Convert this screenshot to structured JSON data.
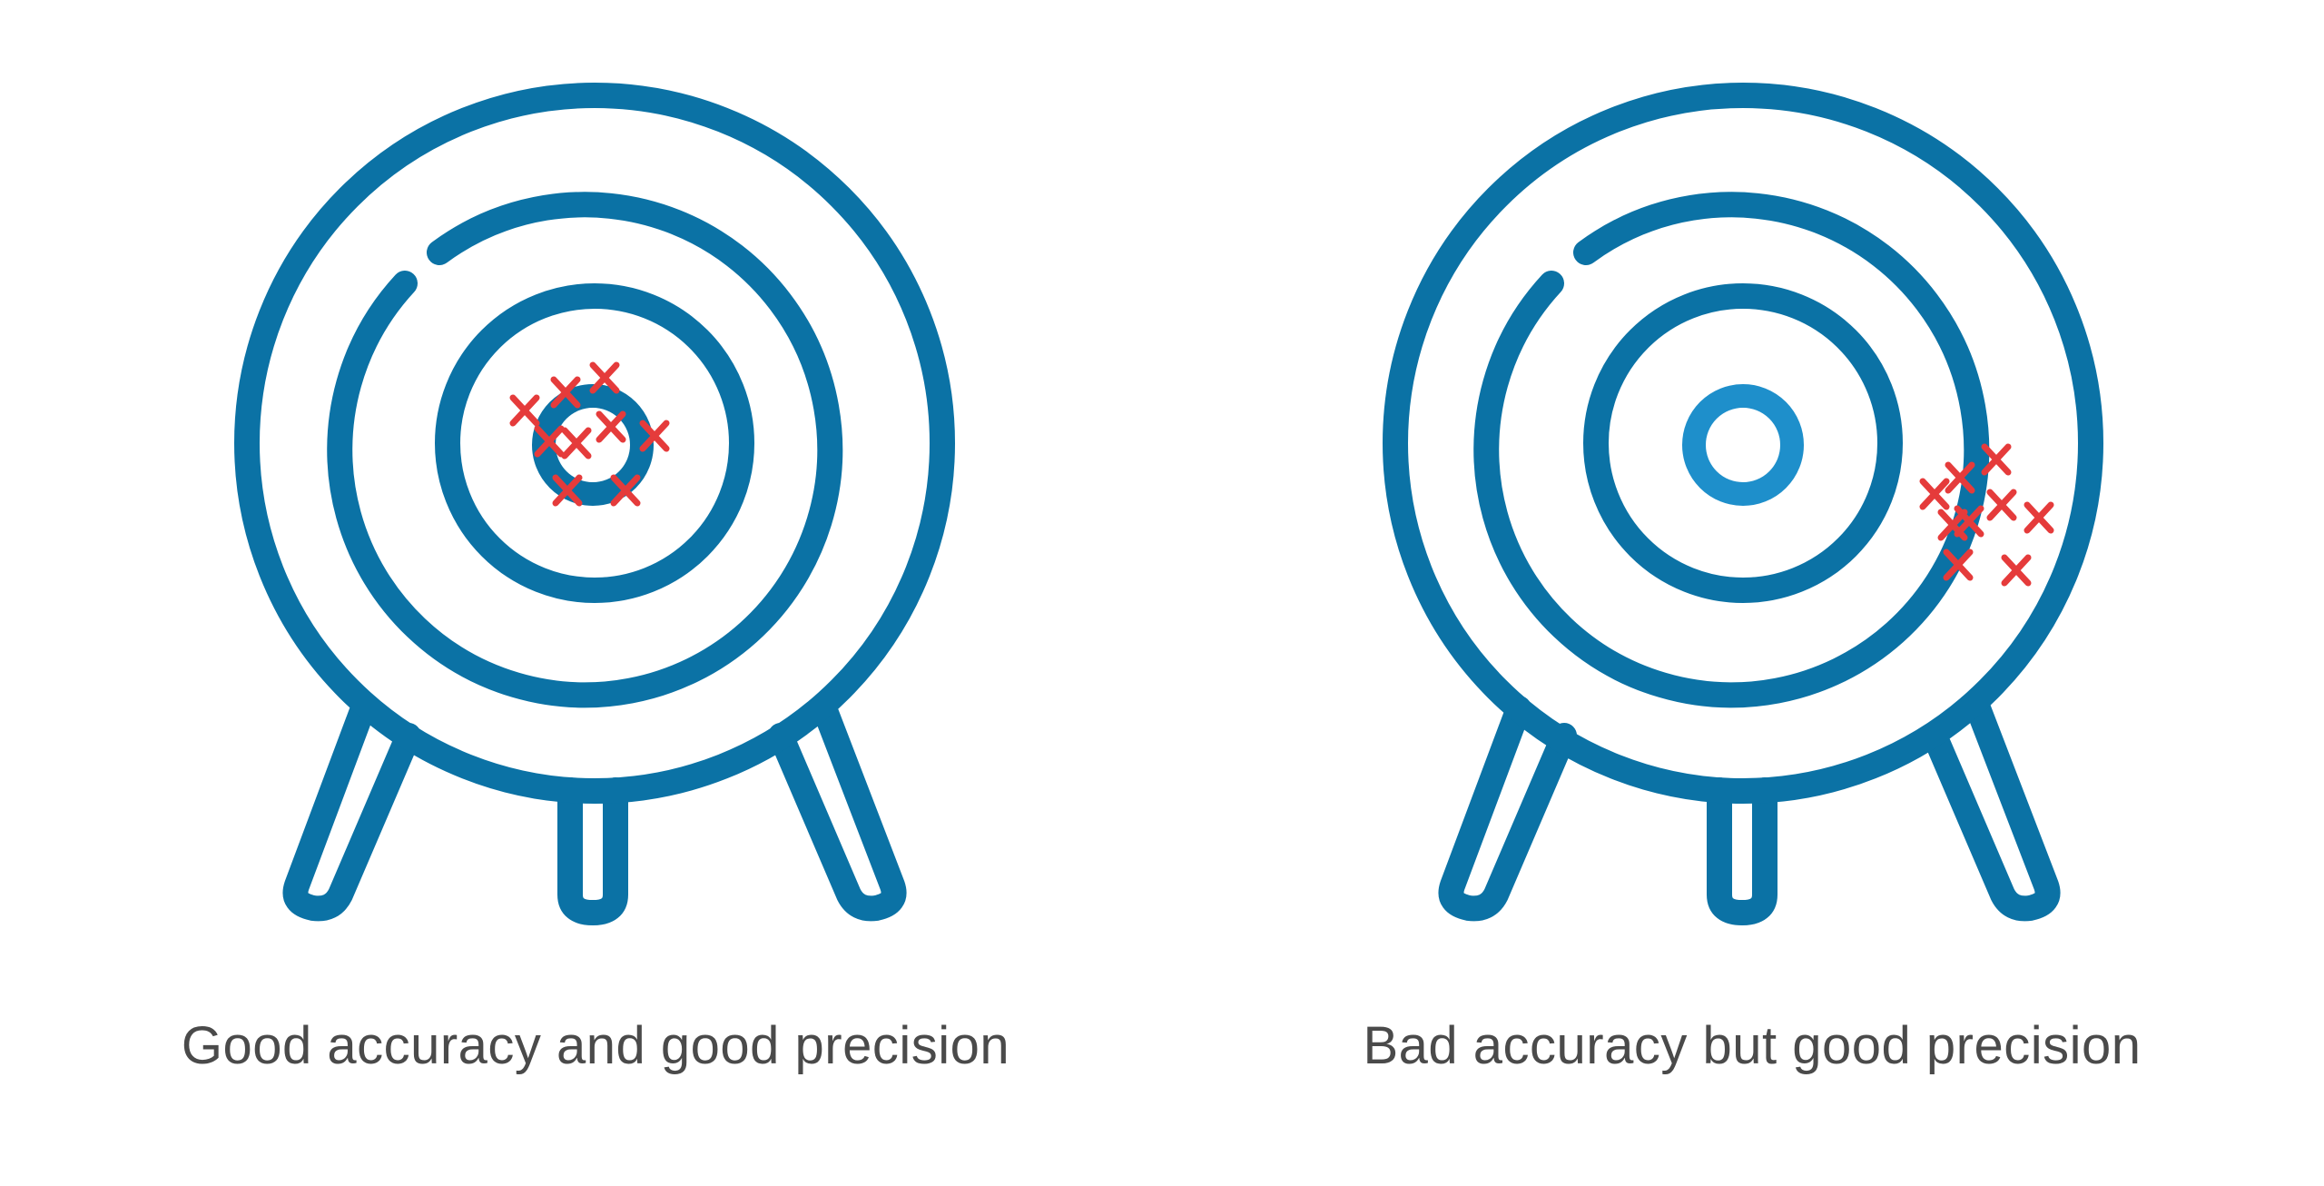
{
  "colors": {
    "target": "#0B72A5",
    "bullseye_right": "#1E8FCB",
    "marker": "#E53B3B",
    "caption": "#4a4a4a",
    "background": "#ffffff"
  },
  "panels": [
    {
      "id": "good-accuracy-good-precision",
      "caption": "Good accuracy and good precision",
      "icon": "archery-target-icon"
    },
    {
      "id": "bad-accuracy-good-precision",
      "caption": "Bad accuracy but good precision",
      "icon": "archery-target-icon"
    }
  ]
}
